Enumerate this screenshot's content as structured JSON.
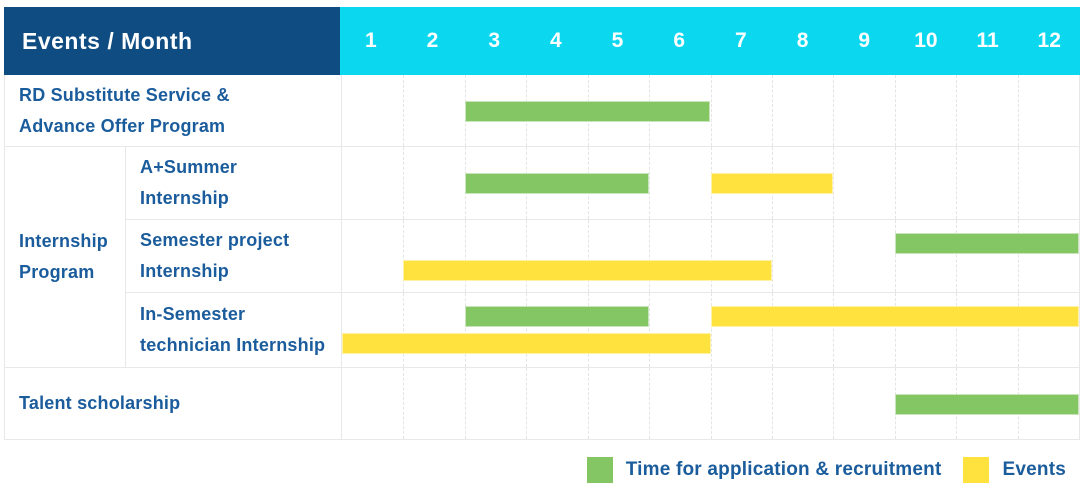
{
  "header": {
    "title": "Events / Month"
  },
  "chart_data": {
    "type": "gantt",
    "unit": "month",
    "title": "Events / Month",
    "months": [
      "1",
      "2",
      "3",
      "4",
      "5",
      "6",
      "7",
      "8",
      "9",
      "10",
      "11",
      "12"
    ],
    "month_range": [
      1,
      12
    ],
    "colors": {
      "application": "#84c564",
      "events": "#ffe23d",
      "corner_bg": "#0e4c82",
      "months_bg": "#0bd7ef",
      "label_text": "#1a5c9c",
      "grid_line": "#e8e8e8"
    },
    "groups": [
      {
        "name": "Internship Program",
        "label_lines": [
          "Internship",
          "Program"
        ]
      }
    ],
    "rows": [
      {
        "id": "rd-substitute-service",
        "group": null,
        "label_lines": [
          "RD Substitute Service &",
          "Advance Offer Program"
        ],
        "bars": [
          {
            "series": "application",
            "start_month": 3,
            "end_month": 6,
            "lane": "mid"
          }
        ]
      },
      {
        "id": "a-plus-summer-internship",
        "group": "Internship Program",
        "label_lines": [
          "A+Summer",
          "Internship"
        ],
        "bars": [
          {
            "series": "application",
            "start_month": 3,
            "end_month": 5,
            "lane": "mid"
          },
          {
            "series": "events",
            "start_month": 7,
            "end_month": 8,
            "lane": "mid"
          }
        ]
      },
      {
        "id": "semester-project-internship",
        "group": "Internship Program",
        "label_lines": [
          "Semester project",
          "Internship"
        ],
        "bars": [
          {
            "series": "application",
            "start_month": 10,
            "end_month": 12,
            "lane": "top"
          },
          {
            "series": "events",
            "start_month": 2,
            "end_month": 7,
            "lane": "bottom"
          }
        ]
      },
      {
        "id": "in-semester-technician-internship",
        "group": "Internship Program",
        "label_lines": [
          "In-Semester",
          "technician Internship"
        ],
        "bars": [
          {
            "series": "application",
            "start_month": 3,
            "end_month": 5,
            "lane": "top"
          },
          {
            "series": "events",
            "start_month": 7,
            "end_month": 12,
            "lane": "top"
          },
          {
            "series": "events",
            "start_month": 1,
            "end_month": 6,
            "lane": "bottom"
          }
        ]
      },
      {
        "id": "talent-scholarship",
        "group": null,
        "label_lines": [
          "Talent scholarship"
        ],
        "bars": [
          {
            "series": "application",
            "start_month": 10,
            "end_month": 12,
            "lane": "mid"
          }
        ]
      }
    ],
    "legend": [
      {
        "series": "application",
        "label": "Time for application & recruitment",
        "color": "#84c564"
      },
      {
        "series": "events",
        "label": "Events",
        "color": "#ffe23d"
      }
    ],
    "legend_position": "bottom-right"
  }
}
